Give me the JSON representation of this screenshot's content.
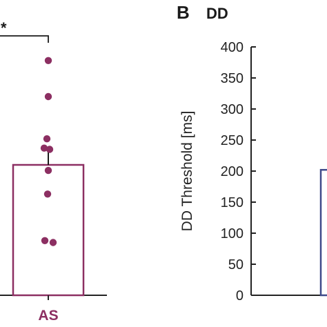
{
  "chart_data": [
    {
      "type": "bar",
      "categories": [
        "AS"
      ],
      "values": [
        210
      ],
      "error_upper": [
        237
      ],
      "points": [
        378,
        320,
        252,
        237,
        235,
        201,
        163,
        88,
        85
      ],
      "significance": "*",
      "ylim": [
        0,
        400
      ],
      "colors": {
        "as": "#8c2f62",
        "axis": "#222222"
      }
    },
    {
      "type": "bar",
      "panel_letter": "B",
      "title": "DD",
      "ylabel": "DD Threshold [ms]",
      "ylim": [
        0,
        400
      ],
      "yticks": [
        0,
        50,
        100,
        150,
        200,
        250,
        300,
        350,
        400
      ],
      "values": [
        202
      ],
      "colors": {
        "bar": "#3f4a8a",
        "axis": "#222222"
      }
    }
  ]
}
